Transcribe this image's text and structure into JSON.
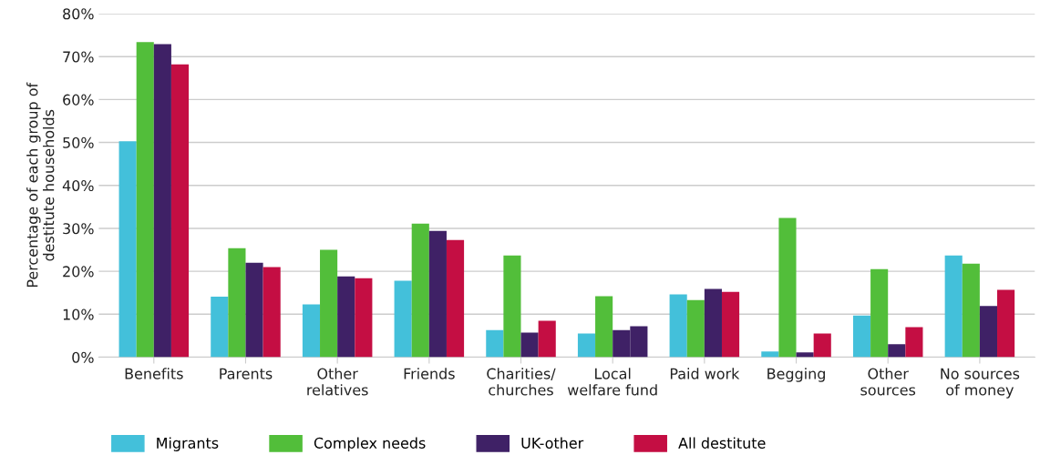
{
  "chart_data": {
    "type": "bar",
    "ylabel": "Percentage of each group of\ndestitute households",
    "categories": [
      "Benefits",
      "Parents",
      "Other\nrelatives",
      "Friends",
      "Charities/\nchurches",
      "Local\nwelfare fund",
      "Paid work",
      "Begging",
      "Other\nsources",
      "No sources\nof money"
    ],
    "series": [
      {
        "name": "Migrants",
        "color": "#43c0da",
        "values": [
          50.3,
          14.1,
          12.3,
          17.8,
          6.3,
          5.5,
          14.6,
          1.3,
          9.7,
          23.7
        ]
      },
      {
        "name": "Complex needs",
        "color": "#52be3a",
        "values": [
          73.4,
          25.4,
          25.0,
          31.1,
          23.7,
          14.2,
          13.3,
          32.4,
          20.5,
          21.8
        ]
      },
      {
        "name": "UK-other",
        "color": "#3f2166",
        "values": [
          72.9,
          22.0,
          18.8,
          29.4,
          5.7,
          6.3,
          15.9,
          1.1,
          3.0,
          11.9
        ]
      },
      {
        "name": "All destitute",
        "color": "#c40e43",
        "colors": [
          "#c40e43",
          "#c40e43",
          "#c40e43",
          "#c40e43",
          "#c40e43",
          "#3f2166",
          "#c40e43",
          "#c40e43",
          "#c40e43",
          "#c40e43"
        ],
        "values": [
          68.2,
          21.0,
          18.4,
          27.3,
          8.5,
          7.2,
          15.2,
          5.5,
          7.0,
          15.7
        ]
      }
    ],
    "ylim": [
      0,
      80
    ],
    "yticks": [
      {
        "value": 0,
        "label": "0%"
      },
      {
        "value": 10,
        "label": "10%"
      },
      {
        "value": 20,
        "label": "20%"
      },
      {
        "value": 30,
        "label": "30%"
      },
      {
        "value": 40,
        "label": "40%"
      },
      {
        "value": 50,
        "label": "50%"
      },
      {
        "value": 60,
        "label": "60%"
      },
      {
        "value": 70,
        "label": "70%"
      },
      {
        "value": 80,
        "label": "80%"
      }
    ],
    "grid": "y",
    "legend": "bottom left"
  }
}
